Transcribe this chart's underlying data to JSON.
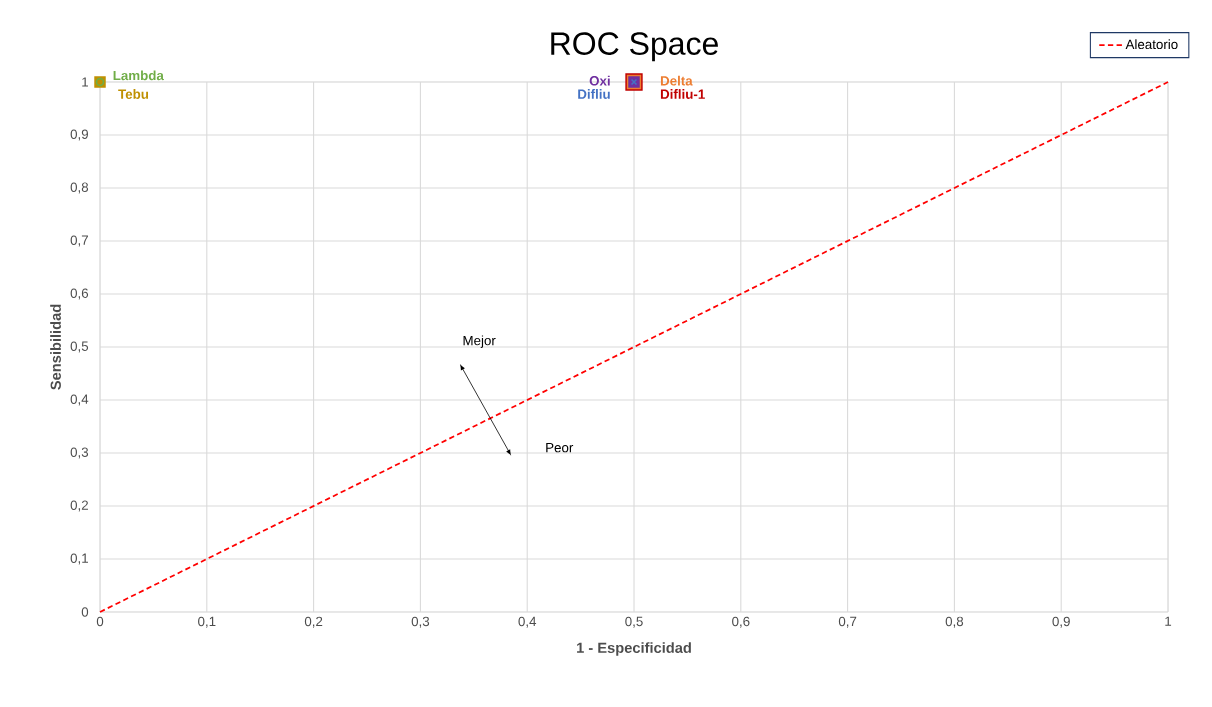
{
  "chart_data": {
    "type": "scatter",
    "title": "ROC Space",
    "xlabel": "1 - Especificidad",
    "ylabel": "Sensibilidad",
    "xlim": [
      0,
      1
    ],
    "ylim": [
      0,
      1
    ],
    "xticks": [
      0,
      {
        "value": 0.1,
        "label": "0,1"
      },
      {
        "value": 0.2,
        "label": "0,2"
      },
      {
        "value": 0.3,
        "label": "0,3"
      },
      {
        "value": 0.4,
        "label": "0,4"
      },
      {
        "value": 0.5,
        "label": "0,5"
      },
      {
        "value": 0.6,
        "label": "0,6"
      },
      {
        "value": 0.7,
        "label": "0,7"
      },
      {
        "value": 0.8,
        "label": "0,8"
      },
      {
        "value": 0.9,
        "label": "0,9"
      },
      1
    ],
    "yticks": [
      0,
      {
        "value": 0.1,
        "label": "0,1"
      },
      {
        "value": 0.2,
        "label": "0,2"
      },
      {
        "value": 0.3,
        "label": "0,3"
      },
      {
        "value": 0.4,
        "label": "0,4"
      },
      {
        "value": 0.5,
        "label": "0,5"
      },
      {
        "value": 0.6,
        "label": "0,6"
      },
      {
        "value": 0.7,
        "label": "0,7"
      },
      {
        "value": 0.8,
        "label": "0,8"
      },
      {
        "value": 0.9,
        "label": "0,9"
      },
      1
    ],
    "grid": true,
    "legend": "top right",
    "annotations": [
      "Mejor",
      "Peor"
    ],
    "series": [
      {
        "name": "Aleatorio",
        "type": "line",
        "line_style": "dashed",
        "marker": "none",
        "color": "#ff0000",
        "x": [
          0,
          1
        ],
        "values": [
          0,
          1
        ]
      },
      {
        "name": "Tebu",
        "marker": "square",
        "color": "#bf9000",
        "x": [
          0
        ],
        "values": [
          1
        ]
      },
      {
        "name": "Lambda",
        "marker": "circle",
        "color": "#70ad47",
        "x": [
          0
        ],
        "values": [
          1
        ]
      },
      {
        "name": "Difliu-1",
        "marker": "square",
        "color": "#c00000",
        "x": [
          0.5
        ],
        "values": [
          1
        ]
      },
      {
        "name": "Delta",
        "marker": "square",
        "color": "#ed7d31",
        "x": [
          0.5
        ],
        "values": [
          1
        ]
      },
      {
        "name": "Oxi",
        "marker": "square",
        "color": "#7030a0",
        "x": [
          0.5
        ],
        "values": [
          1
        ]
      },
      {
        "name": "Difliu",
        "marker": "cross",
        "color": "#4472c4",
        "x": [
          0.5
        ],
        "values": [
          1
        ]
      }
    ]
  }
}
